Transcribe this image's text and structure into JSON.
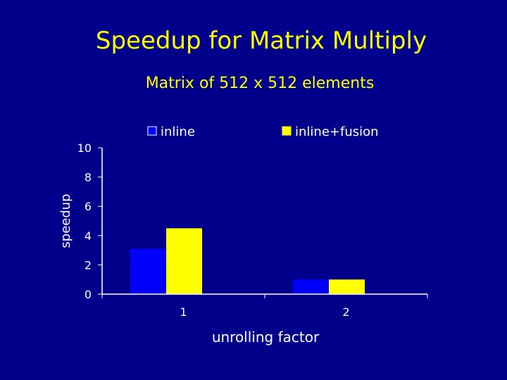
{
  "slide": {
    "title": "Speedup for Matrix Multiply"
  },
  "colors": {
    "background": "#00008b",
    "title": "#ffff00",
    "text": "#ffffff",
    "axis": "#ffffff",
    "series_inline": "#0000ff",
    "series_fusion": "#ffff00"
  },
  "chart_data": {
    "type": "bar",
    "title": "Matrix of 512 x 512 elements",
    "xlabel": "unrolling factor",
    "ylabel": "speedup",
    "categories": [
      "1",
      "2"
    ],
    "series": [
      {
        "name": "inline",
        "values": [
          3.1,
          1.0
        ]
      },
      {
        "name": "inline+fusion",
        "values": [
          4.5,
          1.0
        ]
      }
    ],
    "ylim": [
      0,
      10
    ],
    "yticks": [
      "0",
      "2",
      "4",
      "6",
      "8",
      "10"
    ],
    "legend": "top",
    "grid": false
  }
}
